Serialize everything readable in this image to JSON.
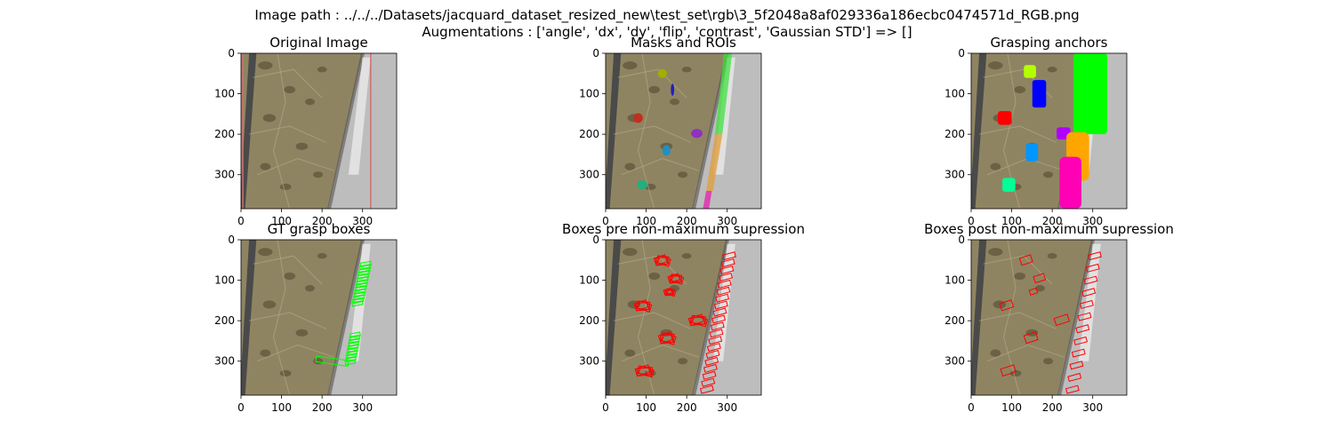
{
  "figure": {
    "suptitle_line1": "Image path : ../../../Datasets/jacquard_dataset_resized_new\\test_set\\rgb\\3_5f2048a8af029336a186ecbc0474571d_RGB.png",
    "suptitle_line2": "Augmentations : ['angle', 'dx', 'dy', 'flip', 'contrast', 'Gaussian STD'] => []"
  },
  "chart_data": [
    {
      "type": "image",
      "title": "Original Image",
      "xlim": [
        0,
        384
      ],
      "ylim": [
        384,
        0
      ],
      "xticks": [
        0,
        100,
        200,
        300
      ],
      "yticks": [
        0,
        100,
        200,
        300
      ],
      "overlay": "none"
    },
    {
      "type": "image",
      "title": "Masks and ROIs",
      "xlim": [
        0,
        384
      ],
      "ylim": [
        384,
        0
      ],
      "xticks": [
        0,
        100,
        200,
        300
      ],
      "yticks": [
        0,
        100,
        200,
        300
      ],
      "overlay": "masks"
    },
    {
      "type": "image",
      "title": "Grasping anchors",
      "xlim": [
        0,
        384
      ],
      "ylim": [
        384,
        0
      ],
      "xticks": [
        0,
        100,
        200,
        300
      ],
      "yticks": [
        0,
        100,
        200,
        300
      ],
      "overlay": "anchors"
    },
    {
      "type": "image",
      "title": "GT grasp boxes",
      "xlim": [
        0,
        384
      ],
      "ylim": [
        384,
        0
      ],
      "xticks": [
        0,
        100,
        200,
        300
      ],
      "yticks": [
        0,
        100,
        200,
        300
      ],
      "overlay": "gt"
    },
    {
      "type": "image",
      "title": "Boxes pre non-maximum supression",
      "xlim": [
        0,
        384
      ],
      "ylim": [
        384,
        0
      ],
      "xticks": [
        0,
        100,
        200,
        300
      ],
      "yticks": [
        0,
        100,
        200,
        300
      ],
      "overlay": "pre"
    },
    {
      "type": "image",
      "title": "Boxes post non-maximum supression",
      "xlim": [
        0,
        384
      ],
      "ylim": [
        384,
        0
      ],
      "xticks": [
        0,
        100,
        200,
        300
      ],
      "yticks": [
        0,
        100,
        200,
        300
      ],
      "overlay": "post"
    }
  ],
  "colors": {
    "floor": "#8f8462",
    "stone_dark": "#5d5338",
    "wall": "#bdbdbd",
    "edge": "#4a4a4a",
    "gt_box": "#00ff00",
    "pred_box": "#ff0000",
    "anchor_lime": "#b4ff00",
    "anchor_blue": "#0000ff",
    "anchor_green": "#00ff00",
    "anchor_red": "#ff0000",
    "anchor_purple": "#b000ff",
    "anchor_orange": "#ffa500",
    "anchor_cyan": "#0096ff",
    "anchor_magenta": "#ff00b4",
    "anchor_mint": "#00ff96"
  }
}
